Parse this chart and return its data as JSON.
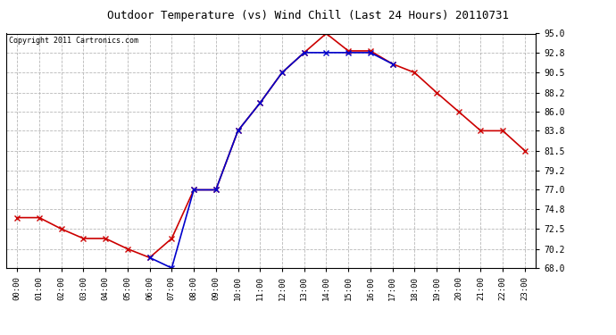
{
  "title": "Outdoor Temperature (vs) Wind Chill (Last 24 Hours) 20110731",
  "copyright": "Copyright 2011 Cartronics.com",
  "hours": [
    "00:00",
    "01:00",
    "02:00",
    "03:00",
    "04:00",
    "05:00",
    "06:00",
    "07:00",
    "08:00",
    "09:00",
    "10:00",
    "11:00",
    "12:00",
    "13:00",
    "14:00",
    "15:00",
    "16:00",
    "17:00",
    "18:00",
    "19:00",
    "20:00",
    "21:00",
    "22:00",
    "23:00"
  ],
  "temp": [
    73.8,
    73.8,
    72.5,
    71.4,
    71.4,
    70.2,
    69.2,
    71.4,
    77.0,
    77.0,
    83.8,
    87.0,
    90.5,
    92.8,
    95.0,
    93.0,
    93.0,
    91.5,
    90.5,
    88.2,
    86.0,
    83.8,
    83.8,
    81.5
  ],
  "wind_chill": [
    null,
    null,
    null,
    null,
    null,
    null,
    69.2,
    68.0,
    77.0,
    77.0,
    83.8,
    87.0,
    90.5,
    92.8,
    92.8,
    92.8,
    92.8,
    91.5,
    null,
    null,
    null,
    null,
    null,
    null
  ],
  "ylim": [
    68.0,
    95.0
  ],
  "yticks": [
    68.0,
    70.2,
    72.5,
    74.8,
    77.0,
    79.2,
    81.5,
    83.8,
    86.0,
    88.2,
    90.5,
    92.8,
    95.0
  ],
  "temp_color": "#cc0000",
  "wind_chill_color": "#0000cc",
  "bg_color": "#ffffff",
  "plot_bg_color": "#ffffff",
  "grid_color": "#b0b0b0",
  "title_fontsize": 9,
  "copyright_fontsize": 6,
  "tick_fontsize": 6.5,
  "ytick_fontsize": 7,
  "marker": "x",
  "marker_size": 4,
  "linewidth": 1.2
}
